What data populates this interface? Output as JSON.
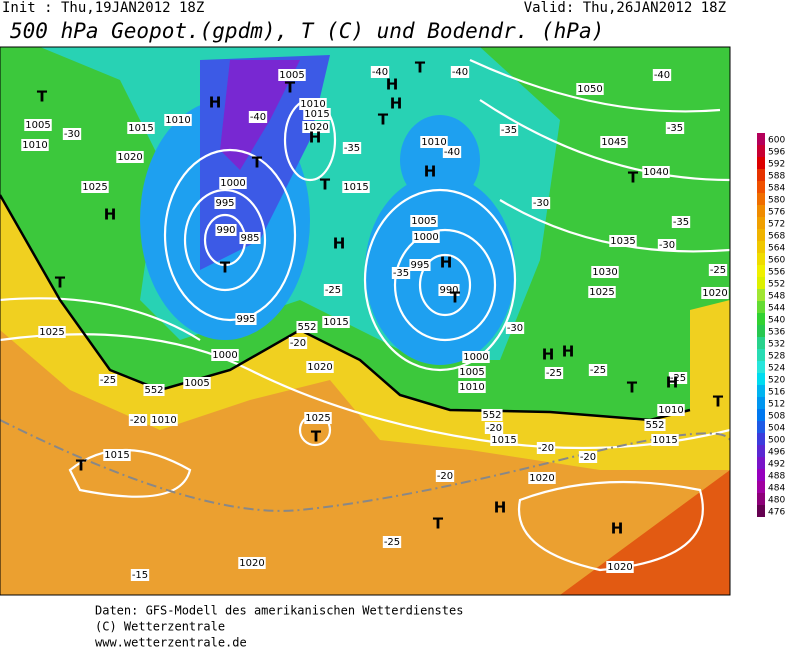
{
  "header": {
    "init": "Init : Thu,19JAN2012 18Z",
    "valid": "Valid: Thu,26JAN2012 18Z",
    "title": "500 hPa Geopot.(gpdm), T (C) und Bodendr. (hPa)"
  },
  "map": {
    "labels": [
      "1005",
      "1010",
      "1015",
      "1020",
      "1025",
      "1005",
      "1010",
      "1000",
      "995",
      "990",
      "985",
      "1010",
      "1015",
      "1020",
      "1015",
      "995",
      "1000",
      "1005",
      "1010",
      "1015",
      "1020",
      "1025",
      "1025",
      "1015",
      "1010",
      "1005",
      "1000",
      "995",
      "990",
      "1000",
      "1005",
      "1010",
      "1015",
      "1020",
      "1020",
      "1020",
      "1050",
      "1045",
      "1040",
      "1035",
      "1030",
      "1025",
      "1020",
      "1015",
      "1010",
      "-40",
      "-40",
      "-40",
      "-40",
      "-30",
      "-35",
      "-40",
      "-35",
      "-35",
      "-30",
      "-35",
      "-30",
      "-25",
      "-25",
      "-25",
      "-20",
      "-25",
      "-20",
      "-20",
      "-20",
      "-20",
      "-20",
      "-25",
      "-15",
      "-35",
      "-30",
      "-25",
      "-25",
      "552",
      "552",
      "552",
      "552"
    ],
    "symbols": [
      "T",
      "H",
      "T",
      "H",
      "T",
      "T",
      "H",
      "T",
      "H",
      "H",
      "T",
      "T",
      "T",
      "H",
      "T",
      "H",
      "T",
      "H",
      "H",
      "T",
      "H",
      "T",
      "T",
      "H",
      "H",
      "T",
      "H",
      "T"
    ]
  },
  "legend": {
    "values": [
      600,
      596,
      592,
      588,
      584,
      580,
      576,
      572,
      568,
      564,
      560,
      556,
      552,
      548,
      544,
      540,
      536,
      532,
      528,
      524,
      520,
      516,
      512,
      508,
      504,
      500,
      496,
      492,
      488,
      484,
      480,
      476
    ],
    "colors": [
      "#b4005a",
      "#c80032",
      "#dc0000",
      "#e63200",
      "#f05000",
      "#f06e00",
      "#f08c00",
      "#f0a000",
      "#f0b400",
      "#f0c800",
      "#f0dc00",
      "#f0f000",
      "#dcf000",
      "#a0e632",
      "#64dc32",
      "#32d232",
      "#28c850",
      "#28d28c",
      "#28dcb4",
      "#28e6dc",
      "#00dcf0",
      "#00b4f0",
      "#0096f0",
      "#0078f0",
      "#1e5ae6",
      "#3c3cdc",
      "#5a28d2",
      "#7814c8",
      "#9600be",
      "#a000a0",
      "#8c0078",
      "#640050"
    ]
  },
  "footer": [
    "Daten: GFS-Modell des amerikanischen Wetterdienstes",
    "(C) Wetterzentrale",
    "www.wetterzentrale.de"
  ]
}
